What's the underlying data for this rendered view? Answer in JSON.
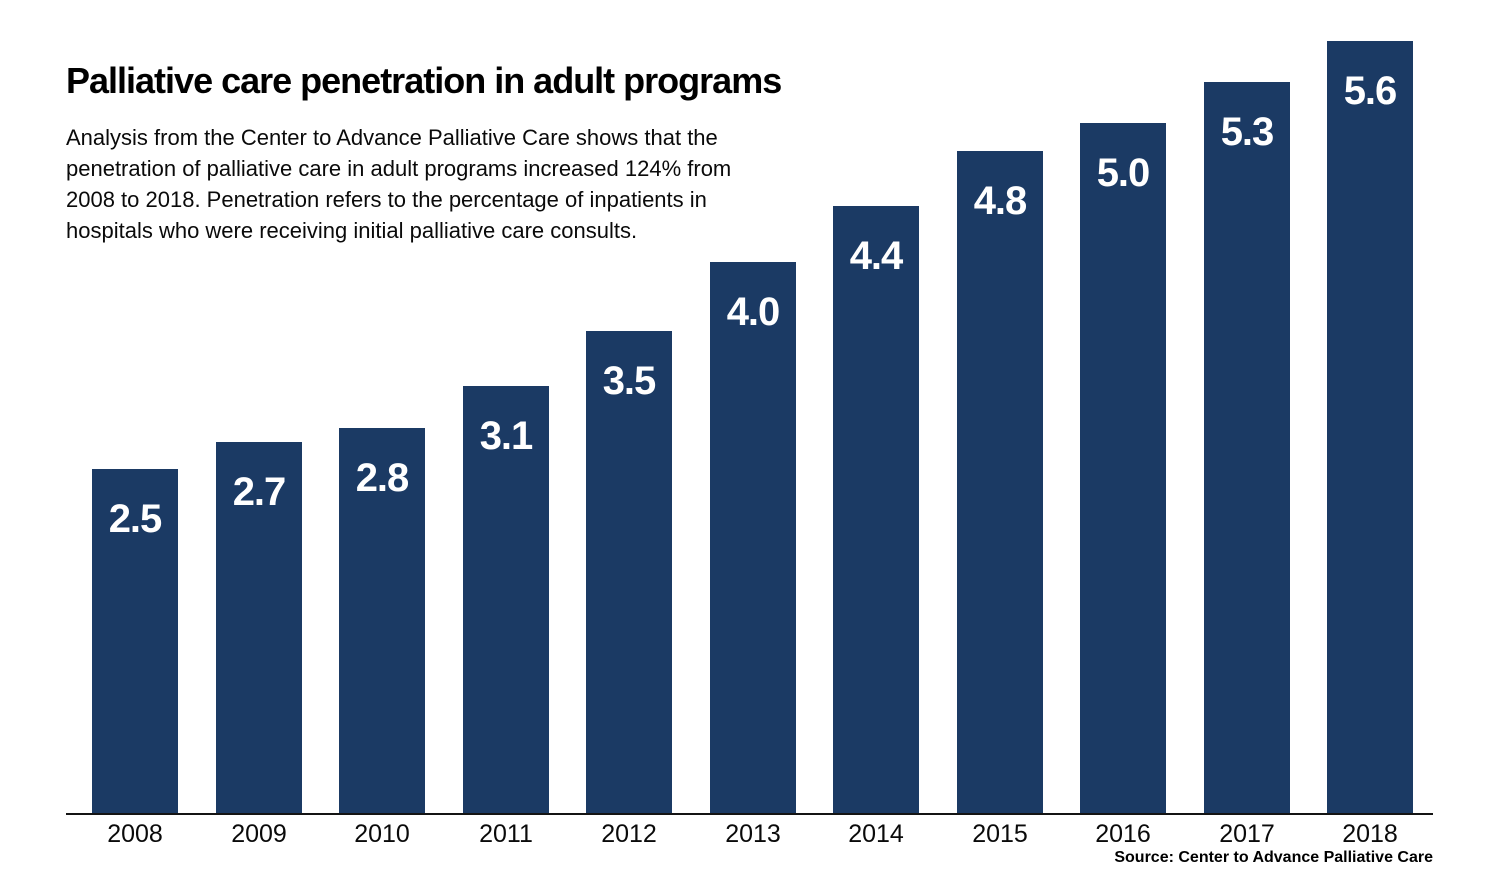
{
  "header": {
    "title": "Palliative care penetration in adult programs",
    "subtitle_lines": [
      "Analysis from the Center to Advance Palliative Care shows that the",
      "penetration of palliative care in adult programs increased 124% from",
      "2008 to 2018. Penetration refers to the percentage of inpatients in",
      "hospitals who were receiving initial palliative care consults."
    ]
  },
  "chart_data": {
    "type": "bar",
    "title": "Palliative care penetration in adult programs",
    "xlabel": "",
    "ylabel": "",
    "categories": [
      "2008",
      "2009",
      "2010",
      "2011",
      "2012",
      "2013",
      "2014",
      "2015",
      "2016",
      "2017",
      "2018"
    ],
    "values": [
      2.5,
      2.7,
      2.8,
      3.1,
      3.5,
      4.0,
      4.4,
      4.8,
      5.0,
      5.3,
      5.6
    ],
    "value_labels": [
      "2.5",
      "2.7",
      "2.8",
      "3.1",
      "3.5",
      "4.0",
      "4.4",
      "4.8",
      "5.0",
      "5.3",
      "5.6"
    ],
    "ylim": [
      0,
      5.6
    ],
    "grid": false,
    "legend": "none",
    "bar_color": "#1b3a64",
    "value_label_color": "#ffffff",
    "axis_color": "#141414"
  },
  "footer": {
    "source": "Source: Center to Advance Palliative Care"
  },
  "colors": {
    "bar": "#1b3a64",
    "text": "#000000",
    "background": "#ffffff"
  }
}
